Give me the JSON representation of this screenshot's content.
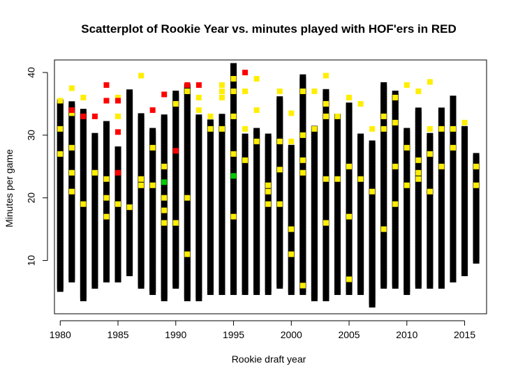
{
  "chart_data": {
    "type": "scatter",
    "title": "Scatterplot of Rookie Year vs. minutes played with HOF'ers in RED",
    "xlabel": "Rookie draft year",
    "ylabel": "Minutes per game",
    "xlim": [
      1979.5,
      2016.9
    ],
    "ylim": [
      1.5,
      42
    ],
    "x_ticks": [
      1980,
      1985,
      1990,
      1995,
      2000,
      2005,
      2010,
      2015
    ],
    "y_ticks": [
      10,
      20,
      30,
      40
    ],
    "grid": false,
    "colors": {
      "regular": "#000000",
      "yellow": "#ffee00",
      "hof": "#ff0000",
      "green": "#00cc00"
    },
    "columns": [
      {
        "x": 1980,
        "min": 5.5,
        "max": 35.5
      },
      {
        "x": 1981,
        "min": 7,
        "max": 35
      },
      {
        "x": 1982,
        "min": 4,
        "max": 34
      },
      {
        "x": 1983,
        "min": 6,
        "max": 30
      },
      {
        "x": 1984,
        "min": 7,
        "max": 32
      },
      {
        "x": 1985,
        "min": 7,
        "max": 28
      },
      {
        "x": 1986,
        "min": 8,
        "max": 37
      },
      {
        "x": 1987,
        "min": 6,
        "max": 33
      },
      {
        "x": 1988,
        "min": 5,
        "max": 31
      },
      {
        "x": 1989,
        "min": 4,
        "max": 33
      },
      {
        "x": 1990,
        "min": 6,
        "max": 37
      },
      {
        "x": 1991,
        "min": 4,
        "max": 38
      },
      {
        "x": 1992,
        "min": 4,
        "max": 33
      },
      {
        "x": 1993,
        "min": 5,
        "max": 32
      },
      {
        "x": 1994,
        "min": 5,
        "max": 33
      },
      {
        "x": 1995,
        "min": 5,
        "max": 41
      },
      {
        "x": 1996,
        "min": 5,
        "max": 30
      },
      {
        "x": 1997,
        "min": 5,
        "max": 31
      },
      {
        "x": 1998,
        "min": 5,
        "max": 30
      },
      {
        "x": 1999,
        "min": 6,
        "max": 36
      },
      {
        "x": 2000,
        "min": 5,
        "max": 28
      },
      {
        "x": 2001,
        "min": 5,
        "max": 39.5
      },
      {
        "x": 2002,
        "min": 4,
        "max": 31
      },
      {
        "x": 2003,
        "min": 4,
        "max": 37
      },
      {
        "x": 2004,
        "min": 5,
        "max": 33
      },
      {
        "x": 2005,
        "min": 5,
        "max": 35
      },
      {
        "x": 2006,
        "min": 5,
        "max": 30
      },
      {
        "x": 2007,
        "min": 3,
        "max": 29
      },
      {
        "x": 2008,
        "min": 6,
        "max": 38
      },
      {
        "x": 2009,
        "min": 6,
        "max": 37
      },
      {
        "x": 2010,
        "min": 5,
        "max": 31
      },
      {
        "x": 2011,
        "min": 6,
        "max": 34
      },
      {
        "x": 2012,
        "min": 6,
        "max": 30
      },
      {
        "x": 2013,
        "min": 6,
        "max": 34
      },
      {
        "x": 2014,
        "min": 7,
        "max": 36
      },
      {
        "x": 2015,
        "min": 8,
        "max": 31
      },
      {
        "x": 2016,
        "min": 10,
        "max": 27
      }
    ],
    "series": [
      {
        "color": "yellow",
        "points": [
          [
            1980,
            35.5
          ],
          [
            1980,
            31
          ],
          [
            1980,
            27
          ],
          [
            1981,
            37.5
          ],
          [
            1981,
            33.5
          ],
          [
            1981,
            28
          ],
          [
            1981,
            24
          ],
          [
            1981,
            21
          ],
          [
            1982,
            36
          ],
          [
            1982,
            19
          ],
          [
            1983,
            24
          ],
          [
            1984,
            23
          ],
          [
            1984,
            20
          ],
          [
            1984,
            17
          ],
          [
            1985,
            36
          ],
          [
            1985,
            33
          ],
          [
            1985,
            19
          ],
          [
            1986,
            18.5
          ],
          [
            1987,
            39.5
          ],
          [
            1987,
            23
          ],
          [
            1987,
            22
          ],
          [
            1988,
            28
          ],
          [
            1988,
            22
          ],
          [
            1989,
            25
          ],
          [
            1989,
            20
          ],
          [
            1989,
            18
          ],
          [
            1989,
            16
          ],
          [
            1990,
            35
          ],
          [
            1990,
            16
          ],
          [
            1991,
            37
          ],
          [
            1991,
            20
          ],
          [
            1991,
            11
          ],
          [
            1992,
            36
          ],
          [
            1992,
            34
          ],
          [
            1993,
            33
          ],
          [
            1993,
            31
          ],
          [
            1994,
            38
          ],
          [
            1994,
            37
          ],
          [
            1994,
            36
          ],
          [
            1994,
            31
          ],
          [
            1995,
            39
          ],
          [
            1995,
            37
          ],
          [
            1995,
            33
          ],
          [
            1995,
            27
          ],
          [
            1995,
            17
          ],
          [
            1996,
            37
          ],
          [
            1996,
            31
          ],
          [
            1996,
            26
          ],
          [
            1997,
            39
          ],
          [
            1997,
            34
          ],
          [
            1997,
            29
          ],
          [
            1998,
            22
          ],
          [
            1998,
            21
          ],
          [
            1998,
            19
          ],
          [
            1999,
            37
          ],
          [
            1999,
            29
          ],
          [
            1999,
            24.5
          ],
          [
            1999,
            19
          ],
          [
            2000,
            33.5
          ],
          [
            2000,
            29
          ],
          [
            2000,
            15
          ],
          [
            2000,
            11
          ],
          [
            2001,
            37
          ],
          [
            2001,
            30
          ],
          [
            2001,
            26
          ],
          [
            2001,
            24
          ],
          [
            2001,
            6
          ],
          [
            2002,
            37
          ],
          [
            2002,
            31
          ],
          [
            2003,
            39.5
          ],
          [
            2003,
            35
          ],
          [
            2003,
            33
          ],
          [
            2003,
            23
          ],
          [
            2003,
            16
          ],
          [
            2004,
            33
          ],
          [
            2004,
            23
          ],
          [
            2005,
            36
          ],
          [
            2005,
            25
          ],
          [
            2005,
            17
          ],
          [
            2005,
            7
          ],
          [
            2006,
            35
          ],
          [
            2006,
            23
          ],
          [
            2007,
            31
          ],
          [
            2007,
            21
          ],
          [
            2008,
            33
          ],
          [
            2008,
            31
          ],
          [
            2008,
            15
          ],
          [
            2009,
            36
          ],
          [
            2009,
            32
          ],
          [
            2009,
            25
          ],
          [
            2009,
            19
          ],
          [
            2010,
            38
          ],
          [
            2010,
            28
          ],
          [
            2010,
            22
          ],
          [
            2011,
            37
          ],
          [
            2011,
            26
          ],
          [
            2011,
            24
          ],
          [
            2011,
            23
          ],
          [
            2012,
            38.5
          ],
          [
            2012,
            31
          ],
          [
            2012,
            27
          ],
          [
            2012,
            21
          ],
          [
            2013,
            31
          ],
          [
            2013,
            25
          ],
          [
            2014,
            31
          ],
          [
            2014,
            28
          ],
          [
            2015,
            32
          ],
          [
            2016,
            25
          ],
          [
            2016,
            22
          ]
        ]
      },
      {
        "color": "hof",
        "points": [
          [
            1981,
            34
          ],
          [
            1982,
            33
          ],
          [
            1983,
            33
          ],
          [
            1984,
            38
          ],
          [
            1984,
            35.5
          ],
          [
            1985,
            35.5
          ],
          [
            1985,
            30.5
          ],
          [
            1985,
            24
          ],
          [
            1988,
            34
          ],
          [
            1989,
            36.5
          ],
          [
            1990,
            27.5
          ],
          [
            1991,
            38
          ],
          [
            1992,
            38
          ],
          [
            1996,
            40
          ]
        ]
      },
      {
        "color": "green",
        "points": [
          [
            1989,
            22.5
          ],
          [
            1995,
            23.5
          ]
        ]
      }
    ]
  }
}
